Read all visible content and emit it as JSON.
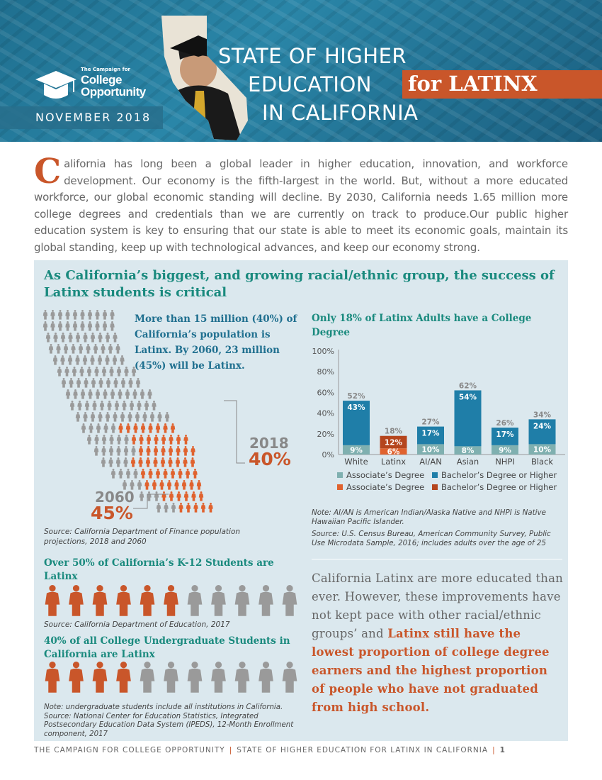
{
  "header": {
    "logo_small": "The Campaign for",
    "logo_line1": "College",
    "logo_line2": "Opportunity",
    "date": "NOVEMBER 2018",
    "title_line1": "STATE OF HIGHER",
    "title_line2": "EDUCATION",
    "title_highlight": "for LATINX",
    "title_line3": "IN CALIFORNIA"
  },
  "intro": {
    "dropcap": "C",
    "text": "alifornia has long been a global leader in higher education, innovation, and workforce development. Our economy is the fifth-largest in the world. But, without a more educated workforce, our global economic standing will decline. By 2030, California needs 1.65 million more college degrees and credentials than we are currently on track to produce.Our public higher education system is key to ensuring that our state is able to meet its economic goals, maintain its global standing, keep up with technological advances, and keep our economy strong."
  },
  "panel": {
    "heading": "As California’s biggest, and growing racial/ethnic group, the success of Latinx students is critical",
    "population_text": "More than 15 million (40%) of California’s population is Latinx. By 2060, 23 million (45%) will be Latinx.",
    "label_2018": "2018",
    "pct_2018": "40%",
    "label_2060": "2060",
    "pct_2060": "45%",
    "source_population": "Source: California Department of Finance population projections, 2018 and 2060",
    "k12_heading": "Over 50% of California’s K-12 Students are Latinx",
    "k12_source": "Source: California Department of Education, 2017",
    "ug_heading": "40% of all College Undergraduate Students in California are Latinx",
    "ug_source": "Note: undergraduate students include all institutions in California. Source: National Center for Education Statistics, Integrated Postsecondary Education Data System (IPEDS), 12-Month Enrollment component, 2017",
    "chart_title": "Only 18% of Latinx Adults have a College Degree",
    "note_ai": "Note: AI/AN is American Indian/Alaska Native and NHPI is Native Hawaiian Pacific Islander.",
    "note_source": "Source: U.S. Census Bureau, American Community Survey, Public Use Microdata Sample, 2016; includes adults over the age of 25",
    "callout_plain": "California Latinx are more educated than ever. However, these improvements have not kept pace with other racial/ethnic groups’ and ",
    "callout_highlight": "Latinx still have the lowest proportion of college degree earners and the highest proportion of people who have not graduated from high school."
  },
  "legend": {
    "assoc": "Associate’s Degree",
    "bach": "Bachelor’s Degree or Higher",
    "assoc_latinx": "Associate’s Degree",
    "bach_latinx": "Bachelor’s Degree or Higher"
  },
  "colors": {
    "assoc": "#7fb0b0",
    "bach": "#1f7ea8",
    "assoc_latinx": "#e0622e",
    "bach_latinx": "#b5451d",
    "accent": "#c9562a",
    "teal": "#1a8a7e"
  },
  "pictograms": {
    "k12_latinx_share": 0.55,
    "ug_latinx_share": 0.4,
    "icon_count": 11
  },
  "chart_data": {
    "type": "bar",
    "stacked": true,
    "title": "Only 18% of Latinx Adults have a College Degree",
    "categories": [
      "White",
      "Latinx",
      "AI/AN",
      "Asian",
      "NHPI",
      "Black"
    ],
    "series": [
      {
        "name": "Associate’s Degree",
        "values": [
          9,
          6,
          10,
          8,
          9,
          10
        ]
      },
      {
        "name": "Bachelor’s Degree or Higher",
        "values": [
          43,
          12,
          17,
          54,
          17,
          24
        ]
      }
    ],
    "totals": [
      52,
      18,
      27,
      62,
      26,
      34
    ],
    "total_labels": [
      "52%",
      "18%",
      "27%",
      "62%",
      "26%",
      "34%"
    ],
    "assoc_labels": [
      "9%",
      "6%",
      "10%",
      "8%",
      "9%",
      "10%"
    ],
    "bach_labels": [
      "43%",
      "12%",
      "17%",
      "54%",
      "17%",
      "24%"
    ],
    "yticks": [
      "0%",
      "20%",
      "40%",
      "60%",
      "80%",
      "100%"
    ],
    "ylim": [
      0,
      100
    ],
    "grid": false,
    "legend_placement": "bottom"
  },
  "footer": {
    "left": "THE CAMPAIGN FOR COLLEGE OPPORTUNITY",
    "right": "STATE OF HIGHER EDUCATION FOR LATINX IN CALIFORNIA",
    "page": "1"
  }
}
